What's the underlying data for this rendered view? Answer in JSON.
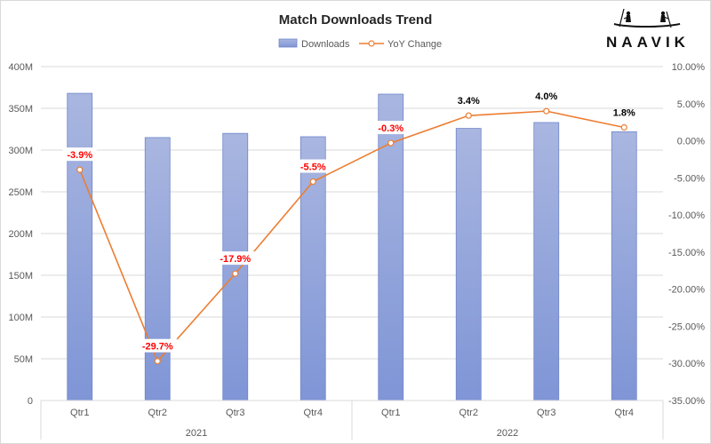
{
  "brand": {
    "name": "NAAVIK"
  },
  "colors": {
    "bar_fill_top": "#a9b6e0",
    "bar_fill_bottom": "#7f95d6",
    "bar_stroke": "#6f86c9",
    "line": "#ed7d31",
    "negative_label": "#ff0000",
    "positive_label": "#000000",
    "grid": "#d9d9d9"
  },
  "chart_data": {
    "type": "bar",
    "title": "Match Downloads Trend",
    "categories": [
      "Qtr1",
      "Qtr2",
      "Qtr3",
      "Qtr4",
      "Qtr1",
      "Qtr2",
      "Qtr3",
      "Qtr4"
    ],
    "groups": [
      {
        "label": "2021",
        "start": 0,
        "end": 3
      },
      {
        "label": "2022",
        "start": 4,
        "end": 7
      }
    ],
    "series": [
      {
        "name": "Downloads",
        "type": "bar",
        "axis": "left",
        "values": [
          368000000,
          315000000,
          320000000,
          316000000,
          367000000,
          326000000,
          333000000,
          322000000
        ]
      },
      {
        "name": "YoY Change",
        "type": "line",
        "axis": "right",
        "values": [
          -3.9,
          -29.7,
          -17.9,
          -5.5,
          -0.3,
          3.4,
          4.0,
          1.8
        ],
        "labels": [
          "-3.9%",
          "-29.7%",
          "-17.9%",
          "-5.5%",
          "-0.3%",
          "3.4%",
          "4.0%",
          "1.8%"
        ]
      }
    ],
    "y_left": {
      "min": 0,
      "max": 400000000,
      "ticks": [
        0,
        50000000,
        100000000,
        150000000,
        200000000,
        250000000,
        300000000,
        350000000,
        400000000
      ],
      "tick_labels": [
        "0",
        "50M",
        "100M",
        "150M",
        "200M",
        "250M",
        "300M",
        "350M",
        "400M"
      ]
    },
    "y_right": {
      "min": -35,
      "max": 10,
      "ticks": [
        10,
        5,
        0,
        -5,
        -10,
        -15,
        -20,
        -25,
        -30,
        -35
      ],
      "tick_labels": [
        "10.00%",
        "5.00%",
        "0.00%",
        "-5.00%",
        "-10.00%",
        "-15.00%",
        "-20.00%",
        "-25.00%",
        "-30.00%",
        "-35.00%"
      ]
    },
    "grid": true,
    "legend": "top"
  }
}
